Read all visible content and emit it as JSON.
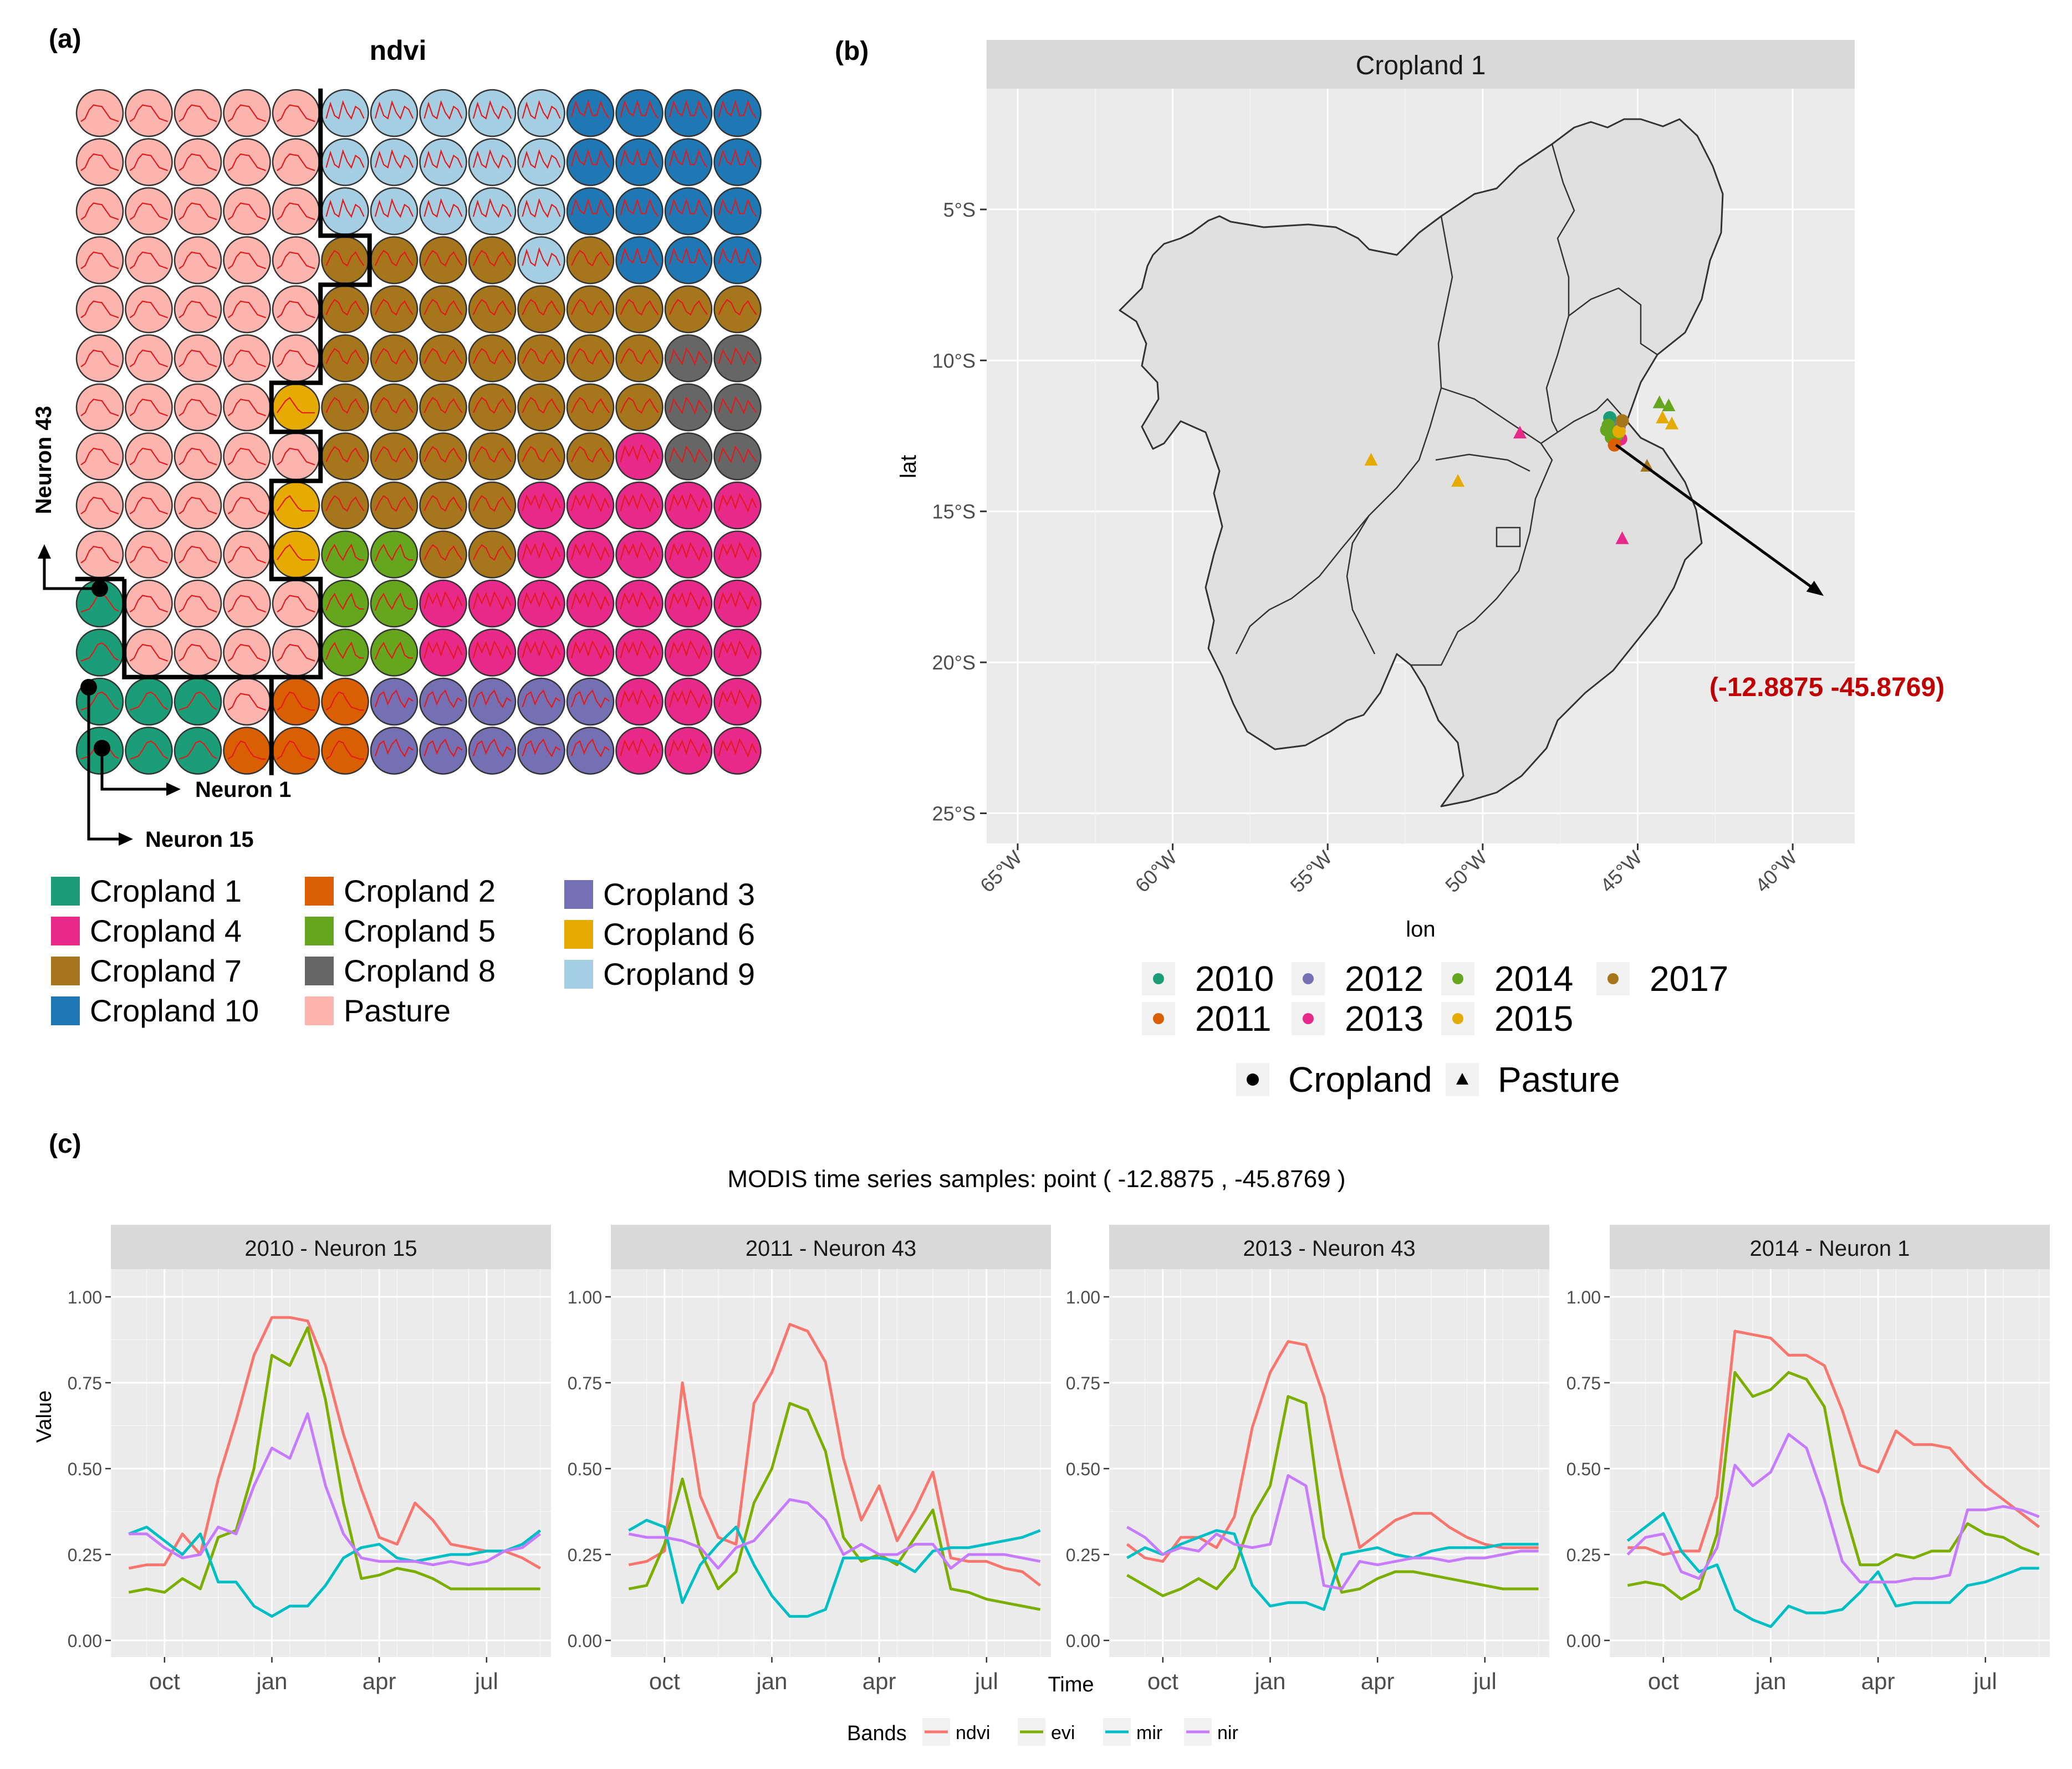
{
  "panel_labels": {
    "a": "(a)",
    "b": "(b)",
    "c": "(c)"
  },
  "colors": {
    "Cropland 1": "#1b9e77",
    "Cropland 2": "#d95f02",
    "Cropland 3": "#7570b3",
    "Cropland 4": "#e7298a",
    "Cropland 5": "#66a61e",
    "Cropland 6": "#e6ab02",
    "Cropland 7": "#a6761d",
    "Cropland 8": "#666666",
    "Cropland 9": "#a6cee3",
    "Cropland 10": "#1f78b4",
    "Pasture": "#fbb4ae",
    "ndvi": "#f8766d",
    "evi": "#7cae00",
    "mir": "#00bfc4",
    "nir": "#c77cff",
    "highlight": "#c00000",
    "panel_bg": "#ebebeb",
    "strip_bg": "#d9d9d9",
    "grid": "#ffffff"
  },
  "som": {
    "title": "ndvi",
    "cols": 14,
    "rows": 14,
    "grid": [
      "PPPPPIIIIITTTT",
      "PPPPPIIIIITTTT",
      "PPPPPIIIIITTTT",
      "PPPPPGGGGIGTTT",
      "PPPPPGGGGGGGGG",
      "PPPPPGGGGGGGHH",
      "PPPPFGGGGGGGHH",
      "PPPPPGGGGGGDHH",
      "PPPPFGGGGDDDDD",
      "PPPPFEEGGDDDDD",
      "APPPPEEDDDDDDD",
      "APPPPEEDDDDDDD",
      "AAAPBBCCCCCDDD",
      "AAABBBCCCCCDDD"
    ],
    "codes": {
      "A": "Cropland 1",
      "B": "Cropland 2",
      "C": "Cropland 3",
      "D": "Cropland 4",
      "E": "Cropland 5",
      "F": "Cropland 6",
      "G": "Cropland 7",
      "H": "Cropland 8",
      "I": "Cropland 9",
      "T": "Cropland 10",
      "P": "Pasture"
    },
    "neuron_labels": [
      "Neuron 43",
      "Neuron 1",
      "Neuron 15"
    ]
  },
  "legend_a": [
    [
      "Cropland 1",
      "Cropland 2",
      "Cropland 3"
    ],
    [
      "Cropland 4",
      "Cropland 5",
      "Cropland 6"
    ],
    [
      "Cropland 7",
      "Cropland 8",
      "Cropland 9"
    ],
    [
      "Cropland 10",
      "Pasture"
    ]
  ],
  "chart_data": [
    {
      "type": "scatter",
      "title": "Cropland 1",
      "xlabel": "lon",
      "ylabel": "lat",
      "xlim": [
        -66,
        -38
      ],
      "ylim": [
        -26,
        -1
      ],
      "xticks": [
        -65,
        -60,
        -55,
        -50,
        -45,
        -40
      ],
      "xtick_labels": [
        "65°W",
        "60°W",
        "55°W",
        "50°W",
        "45°W",
        "40°W"
      ],
      "yticks": [
        -5,
        -10,
        -15,
        -20,
        -25
      ],
      "ytick_labels": [
        "5°S",
        "10°S",
        "15°S",
        "20°S",
        "25°S"
      ],
      "points": [
        {
          "lon": -45.9,
          "lat": -11.9,
          "year": "2010",
          "class": "Cropland"
        },
        {
          "lon": -45.75,
          "lat": -12.1,
          "year": "2010",
          "class": "Cropland"
        },
        {
          "lon": -45.6,
          "lat": -12.2,
          "year": "2012",
          "class": "Cropland"
        },
        {
          "lon": -45.8,
          "lat": -12.4,
          "year": "2012",
          "class": "Cropland"
        },
        {
          "lon": -45.7,
          "lat": -12.7,
          "year": "2013",
          "class": "Cropland"
        },
        {
          "lon": -45.55,
          "lat": -12.6,
          "year": "2013",
          "class": "Cropland"
        },
        {
          "lon": -46.0,
          "lat": -12.3,
          "year": "2014",
          "class": "Cropland"
        },
        {
          "lon": -45.85,
          "lat": -12.55,
          "year": "2014",
          "class": "Cropland"
        },
        {
          "lon": -45.95,
          "lat": -12.15,
          "year": "2014",
          "class": "Cropland"
        },
        {
          "lon": -45.65,
          "lat": -12.45,
          "year": "2014",
          "class": "Cropland"
        },
        {
          "lon": -45.75,
          "lat": -12.8,
          "year": "2011",
          "class": "Cropland"
        },
        {
          "lon": -45.6,
          "lat": -12.35,
          "year": "2015",
          "class": "Cropland"
        },
        {
          "lon": -45.5,
          "lat": -12.0,
          "year": "2017",
          "class": "Cropland"
        },
        {
          "lon": -53.6,
          "lat": -13.3,
          "year": "2015",
          "class": "Pasture"
        },
        {
          "lon": -50.8,
          "lat": -14.0,
          "year": "2015",
          "class": "Pasture"
        },
        {
          "lon": -48.8,
          "lat": -12.4,
          "year": "2013",
          "class": "Pasture"
        },
        {
          "lon": -45.5,
          "lat": -15.9,
          "year": "2013",
          "class": "Pasture"
        },
        {
          "lon": -44.3,
          "lat": -11.4,
          "year": "2014",
          "class": "Pasture"
        },
        {
          "lon": -44.0,
          "lat": -11.5,
          "year": "2014",
          "class": "Pasture"
        },
        {
          "lon": -44.2,
          "lat": -11.9,
          "year": "2015",
          "class": "Pasture"
        },
        {
          "lon": -43.9,
          "lat": -12.1,
          "year": "2015",
          "class": "Pasture"
        },
        {
          "lon": -44.7,
          "lat": -13.5,
          "year": "2017",
          "class": "Pasture"
        }
      ],
      "year_colors": {
        "2010": "#1b9e77",
        "2011": "#d95f02",
        "2012": "#7570b3",
        "2013": "#e7298a",
        "2014": "#66a61e",
        "2015": "#e6ab02",
        "2017": "#a6761d"
      },
      "legend_years": [
        [
          "2010",
          "2012",
          "2014",
          "2017"
        ],
        [
          "2011",
          "2013",
          "2015"
        ]
      ],
      "legend_shapes": [
        "Cropland",
        "Pasture"
      ],
      "annotation": {
        "text": "(-12.8875 -45.8769)",
        "from": [
          -45.7,
          -12.8
        ],
        "to": [
          -39.0,
          -17.8
        ]
      }
    },
    {
      "type": "line",
      "title": "MODIS time series samples: point ( -12.8875 , -45.8769 )",
      "xlabel": "Time",
      "ylabel": "Value",
      "ylim": [
        0,
        1
      ],
      "yticks": [
        0,
        0.25,
        0.5,
        0.75,
        1
      ],
      "ytick_labels": [
        "0.00",
        "0.25",
        "0.50",
        "0.75",
        "1.00"
      ],
      "x_month_ticks": [
        1.5,
        4.5,
        7.5,
        10.5
      ],
      "x_tick_labels": [
        "oct",
        "jan",
        "apr",
        "jul"
      ],
      "xlim": [
        0,
        12.3
      ],
      "legend_title": "Bands",
      "bands": [
        "ndvi",
        "evi",
        "mir",
        "nir"
      ],
      "x": [
        0.5,
        1.0,
        1.5,
        2.0,
        2.5,
        3.0,
        3.5,
        4.0,
        4.5,
        5.0,
        5.5,
        6.0,
        6.5,
        7.0,
        7.5,
        8.0,
        8.5,
        9.0,
        9.5,
        10.0,
        10.5,
        11.0,
        11.5,
        12.0
      ],
      "facets": [
        {
          "title": "2010 - Neuron 15",
          "series": {
            "ndvi": [
              0.21,
              0.22,
              0.22,
              0.31,
              0.25,
              0.47,
              0.64,
              0.83,
              0.94,
              0.94,
              0.93,
              0.8,
              0.6,
              0.44,
              0.3,
              0.28,
              0.4,
              0.35,
              0.28,
              0.27,
              0.26,
              0.26,
              0.24,
              0.21
            ],
            "evi": [
              0.14,
              0.15,
              0.14,
              0.18,
              0.15,
              0.3,
              0.32,
              0.5,
              0.83,
              0.8,
              0.91,
              0.7,
              0.4,
              0.18,
              0.19,
              0.21,
              0.2,
              0.18,
              0.15,
              0.15,
              0.15,
              0.15,
              0.15,
              0.15
            ],
            "mir": [
              0.31,
              0.33,
              0.29,
              0.25,
              0.31,
              0.17,
              0.17,
              0.1,
              0.07,
              0.1,
              0.1,
              0.16,
              0.24,
              0.27,
              0.28,
              0.24,
              0.23,
              0.24,
              0.25,
              0.25,
              0.26,
              0.26,
              0.28,
              0.32
            ],
            "nir": [
              0.31,
              0.31,
              0.27,
              0.24,
              0.25,
              0.33,
              0.31,
              0.45,
              0.56,
              0.53,
              0.66,
              0.45,
              0.31,
              0.24,
              0.23,
              0.23,
              0.23,
              0.22,
              0.23,
              0.22,
              0.23,
              0.26,
              0.27,
              0.31
            ]
          }
        },
        {
          "title": "2011 - Neuron 43",
          "series": {
            "ndvi": [
              0.22,
              0.23,
              0.26,
              0.75,
              0.42,
              0.3,
              0.28,
              0.69,
              0.78,
              0.92,
              0.9,
              0.81,
              0.53,
              0.35,
              0.45,
              0.29,
              0.38,
              0.49,
              0.24,
              0.23,
              0.23,
              0.21,
              0.2,
              0.16
            ],
            "evi": [
              0.15,
              0.16,
              0.28,
              0.47,
              0.26,
              0.15,
              0.2,
              0.4,
              0.5,
              0.69,
              0.67,
              0.55,
              0.3,
              0.23,
              0.25,
              0.22,
              0.3,
              0.38,
              0.15,
              0.14,
              0.12,
              0.11,
              0.1,
              0.09
            ],
            "mir": [
              0.32,
              0.35,
              0.33,
              0.11,
              0.22,
              0.28,
              0.33,
              0.22,
              0.13,
              0.07,
              0.07,
              0.09,
              0.24,
              0.24,
              0.24,
              0.23,
              0.2,
              0.26,
              0.27,
              0.27,
              0.28,
              0.29,
              0.3,
              0.32
            ],
            "nir": [
              0.31,
              0.3,
              0.3,
              0.29,
              0.27,
              0.21,
              0.27,
              0.29,
              0.35,
              0.41,
              0.4,
              0.35,
              0.25,
              0.28,
              0.25,
              0.25,
              0.28,
              0.28,
              0.21,
              0.25,
              0.25,
              0.25,
              0.24,
              0.23
            ]
          }
        },
        {
          "title": "2013 - Neuron 43",
          "series": {
            "ndvi": [
              0.28,
              0.24,
              0.23,
              0.3,
              0.3,
              0.27,
              0.36,
              0.62,
              0.78,
              0.87,
              0.86,
              0.71,
              0.48,
              0.27,
              0.31,
              0.35,
              0.37,
              0.37,
              0.33,
              0.3,
              0.28,
              0.27,
              0.27,
              0.27
            ],
            "evi": [
              0.19,
              0.16,
              0.13,
              0.15,
              0.18,
              0.15,
              0.21,
              0.36,
              0.45,
              0.71,
              0.69,
              0.3,
              0.14,
              0.15,
              0.18,
              0.2,
              0.2,
              0.19,
              0.18,
              0.17,
              0.16,
              0.15,
              0.15,
              0.15
            ],
            "mir": [
              0.24,
              0.27,
              0.25,
              0.28,
              0.3,
              0.32,
              0.31,
              0.16,
              0.1,
              0.11,
              0.11,
              0.09,
              0.25,
              0.26,
              0.27,
              0.25,
              0.24,
              0.26,
              0.27,
              0.27,
              0.27,
              0.28,
              0.28,
              0.28
            ],
            "nir": [
              0.33,
              0.3,
              0.25,
              0.27,
              0.26,
              0.31,
              0.28,
              0.27,
              0.28,
              0.48,
              0.45,
              0.16,
              0.15,
              0.23,
              0.22,
              0.23,
              0.24,
              0.24,
              0.23,
              0.24,
              0.24,
              0.25,
              0.26,
              0.26
            ]
          }
        },
        {
          "title": "2014 - Neuron 1",
          "series": {
            "ndvi": [
              0.27,
              0.27,
              0.25,
              0.26,
              0.26,
              0.42,
              0.9,
              0.89,
              0.88,
              0.83,
              0.83,
              0.8,
              0.67,
              0.51,
              0.49,
              0.61,
              0.57,
              0.57,
              0.56,
              0.5,
              0.45,
              0.41,
              0.37,
              0.33
            ],
            "evi": [
              0.16,
              0.17,
              0.16,
              0.12,
              0.15,
              0.31,
              0.78,
              0.71,
              0.73,
              0.78,
              0.76,
              0.68,
              0.4,
              0.22,
              0.22,
              0.25,
              0.24,
              0.26,
              0.26,
              0.34,
              0.31,
              0.3,
              0.27,
              0.25
            ],
            "mir": [
              0.29,
              0.33,
              0.37,
              0.26,
              0.2,
              0.22,
              0.09,
              0.06,
              0.04,
              0.1,
              0.08,
              0.08,
              0.09,
              0.14,
              0.2,
              0.1,
              0.11,
              0.11,
              0.11,
              0.16,
              0.17,
              0.19,
              0.21,
              0.21
            ],
            "nir": [
              0.25,
              0.3,
              0.31,
              0.2,
              0.18,
              0.27,
              0.51,
              0.45,
              0.49,
              0.6,
              0.56,
              0.41,
              0.23,
              0.17,
              0.17,
              0.17,
              0.18,
              0.18,
              0.19,
              0.38,
              0.38,
              0.39,
              0.38,
              0.36
            ]
          }
        }
      ]
    }
  ]
}
